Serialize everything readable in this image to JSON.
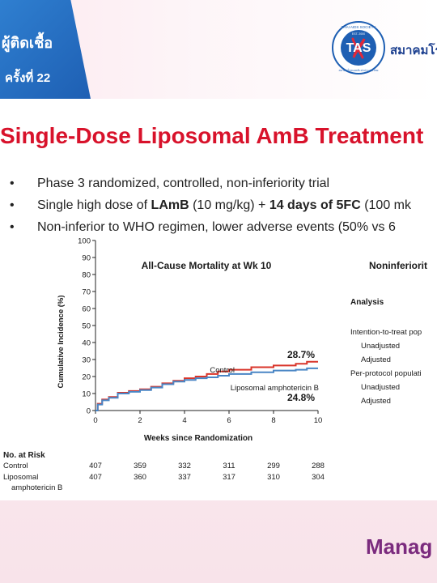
{
  "header": {
    "thai_line1": "ผู้ติดเชื้อ",
    "thai_line2": "ครั้งที่ 22",
    "logo_text": "TAS",
    "logo_ring_top": "THAI AIDS SOCIETY",
    "logo_ring_bottom": "สมาคมโรคเอดส์แห่งประเทศไทย",
    "logo_year": "EST. 2000",
    "association_name": "สมาคมโร"
  },
  "slide": {
    "title": "Single-Dose Liposomal AmB Treatment",
    "bullets": [
      {
        "parts": [
          "Phase 3 randomized, controlled, non-inferiority trial"
        ]
      },
      {
        "parts": [
          "Single high dose of ",
          "LAmB",
          " (10 mg/kg) + ",
          "14 days of 5FC",
          " (100 mk"
        ]
      },
      {
        "parts": [
          "Non-inferior to WHO regimen, lower adverse events (50% vs 6"
        ]
      }
    ]
  },
  "chart_data": {
    "type": "line",
    "title": "All-Cause Mortality at Wk 10",
    "xlabel": "Weeks since Randomization",
    "ylabel": "Cumulative Incidence (%)",
    "xlim": [
      0,
      10
    ],
    "ylim": [
      0,
      100
    ],
    "x_ticks": [
      "0",
      "2",
      "4",
      "6",
      "8",
      "10"
    ],
    "y_ticks": [
      "0",
      "10",
      "20",
      "30",
      "40",
      "50",
      "60",
      "70",
      "80",
      "90",
      "100"
    ],
    "series": [
      {
        "name": "Control",
        "color": "#d9352a",
        "end_label": "28.7%",
        "x": [
          0,
          0.1,
          0.3,
          0.6,
          1.0,
          1.5,
          2.0,
          2.5,
          3.0,
          3.5,
          4.0,
          4.5,
          5.0,
          5.5,
          6.0,
          7.0,
          8.0,
          9.0,
          9.5,
          10.0
        ],
        "y": [
          0,
          4,
          6.5,
          8,
          10.5,
          11.5,
          12.5,
          14,
          16,
          17.5,
          19,
          20,
          21.5,
          23,
          24,
          25.5,
          26.5,
          27.5,
          28.7,
          28.7
        ]
      },
      {
        "name": "Liposomal amphotericin B",
        "color": "#4a86c5",
        "end_label": "24.8%",
        "x": [
          0,
          0.1,
          0.3,
          0.6,
          1.0,
          1.5,
          2.0,
          2.5,
          3.0,
          3.5,
          4.0,
          4.5,
          5.0,
          5.5,
          6.0,
          7.0,
          8.0,
          9.0,
          9.5,
          10.0
        ],
        "y": [
          0,
          3.5,
          6,
          7.5,
          10,
          11,
          12,
          13.5,
          15.5,
          17,
          18,
          19,
          19.5,
          20.5,
          21.5,
          22.5,
          23.5,
          24,
          24.8,
          24.8
        ]
      }
    ],
    "at_risk": {
      "title": "No. at Risk",
      "rows": [
        {
          "label": "Control",
          "values": [
            "407",
            "359",
            "332",
            "311",
            "299",
            "288"
          ]
        },
        {
          "label": "Liposomal",
          "label2": "amphotericin B",
          "values": [
            "407",
            "360",
            "337",
            "317",
            "310",
            "304"
          ]
        }
      ]
    }
  },
  "side_panel": {
    "title": "Noninferiorit",
    "analysis_label": "Analysis",
    "rows": [
      "Intention-to-treat pop",
      "Unadjusted",
      "Adjusted",
      "Per-protocol populati",
      "Unadjusted",
      "Adjusted"
    ]
  },
  "footer": {
    "manage_text": "Manag"
  },
  "colors": {
    "title_red": "#d8122b",
    "header_blue": "#1e5fb3",
    "manage_purple": "#7b2b7e"
  }
}
